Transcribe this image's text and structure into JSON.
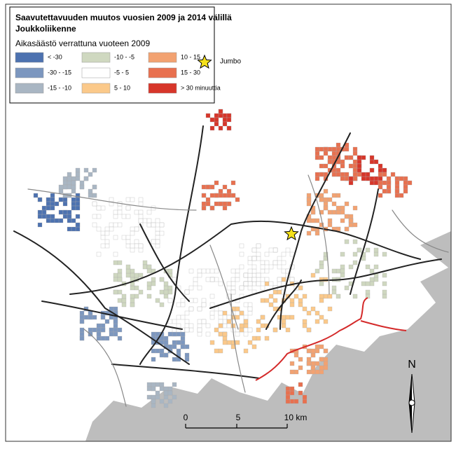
{
  "title": [
    "Saavutettavuuden muutos vuosien 2009 ja 2014 välillä",
    "Joukkoliikenne"
  ],
  "legend": {
    "title": "Aikasäästö verrattuna vuoteen 2009",
    "items": [
      {
        "label": "< -30",
        "color": "#4d72b0"
      },
      {
        "label": "-30 - -15",
        "color": "#7c97bf"
      },
      {
        "label": "-15 - -10",
        "color": "#a9b6c3"
      },
      {
        "label": "-10 - -5",
        "color": "#cfd8c0"
      },
      {
        "label": "-5 - 5",
        "color": "#ffffff"
      },
      {
        "label": "5 - 10",
        "color": "#fbc98a"
      },
      {
        "label": "10 - 15",
        "color": "#f2a271"
      },
      {
        "label": "15 - 30",
        "color": "#e8704f"
      },
      {
        "label": "> 30 minuuttia",
        "color": "#d7362a"
      }
    ],
    "marker": {
      "label": "Jumbo",
      "color": "#f5e11a"
    }
  },
  "scale_bar": {
    "ticks": [
      "0",
      "5",
      "10 km"
    ]
  },
  "north": "N"
}
